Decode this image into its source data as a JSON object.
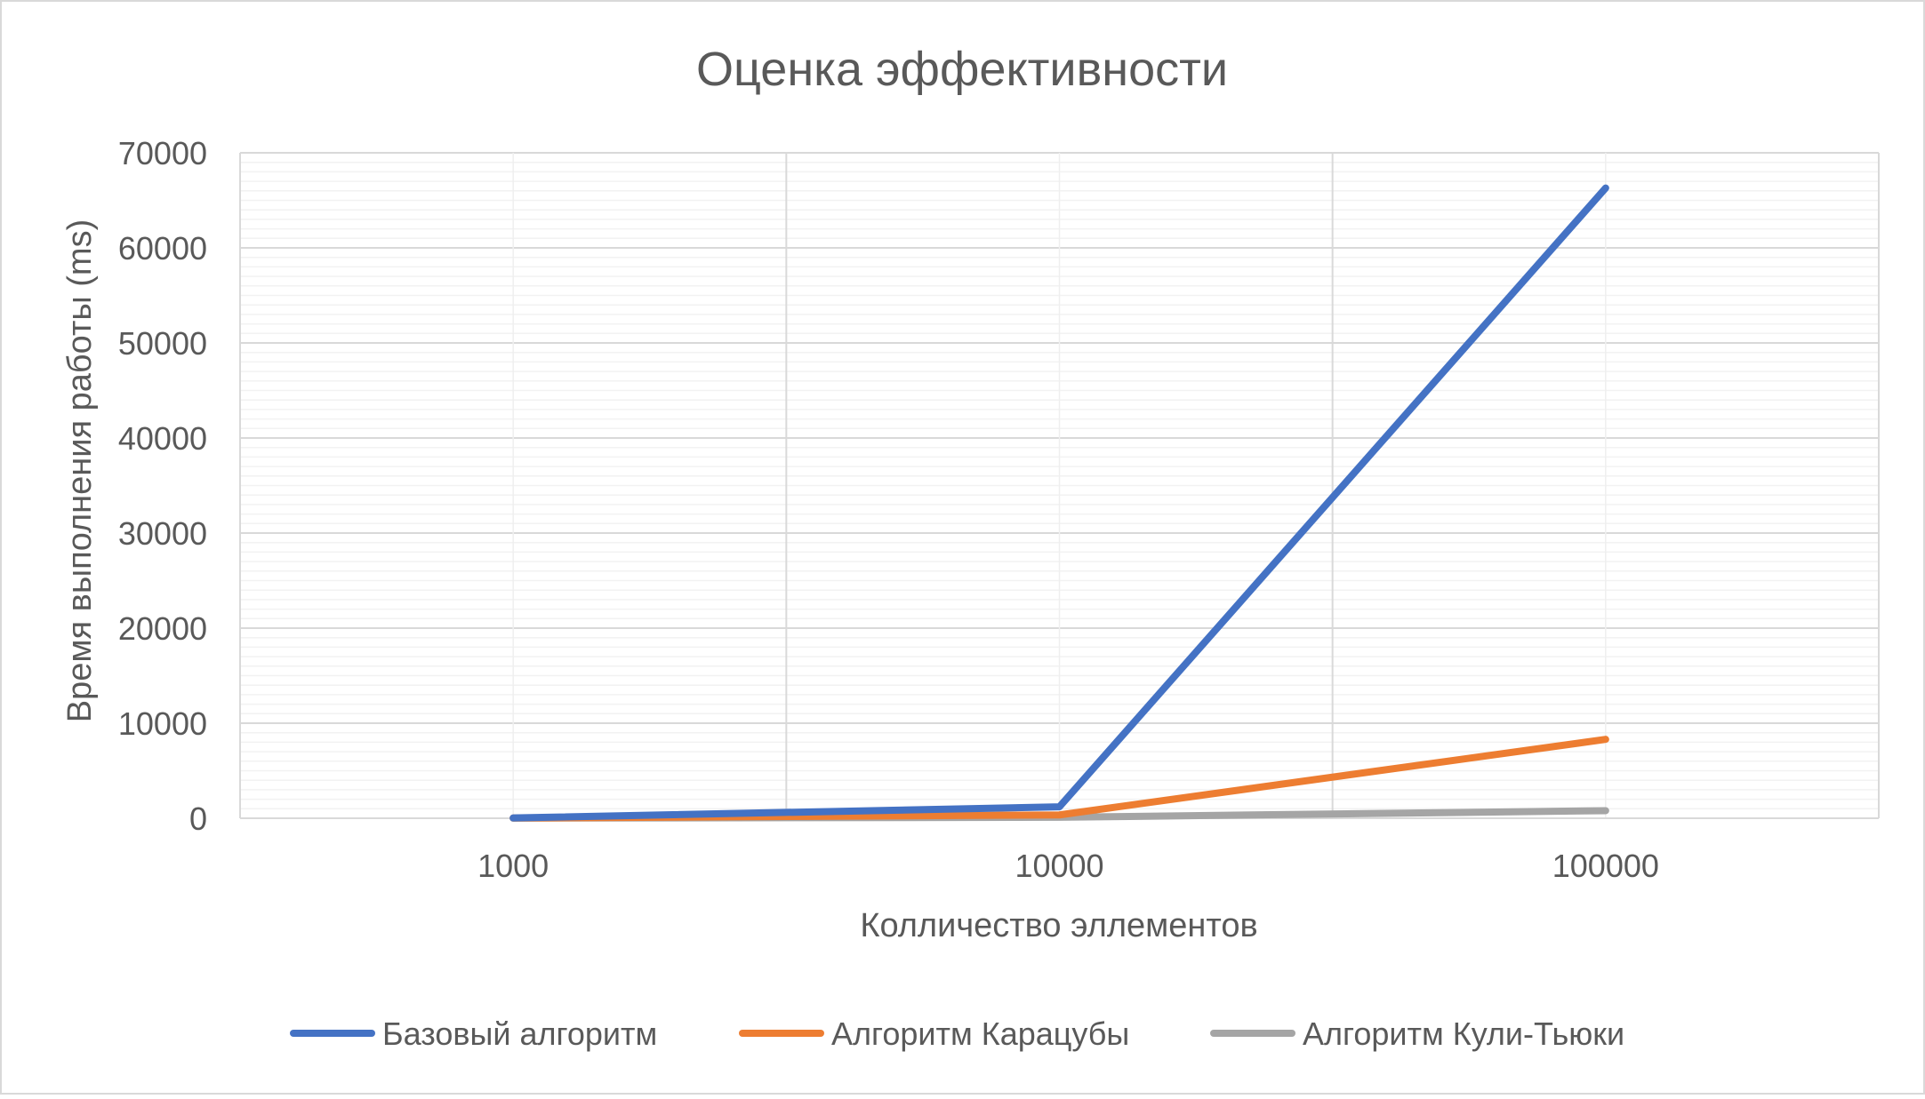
{
  "chart_data": {
    "type": "line",
    "title": "Оценка эффективности",
    "xlabel": "Колличество эллементов",
    "ylabel": "Время выполнения работы (ms)",
    "categories": [
      "1000",
      "10000",
      "100000"
    ],
    "yticks": [
      "0",
      "10000",
      "20000",
      "30000",
      "40000",
      "50000",
      "60000",
      "70000"
    ],
    "ylim": [
      0,
      70000
    ],
    "grid": true,
    "legend_position": "bottom",
    "series": [
      {
        "name": "Базовый алгоритм",
        "values": [
          30,
          1200,
          66300
        ],
        "color": "#4472C4"
      },
      {
        "name": "Алгоритм Карацубы",
        "values": [
          20,
          350,
          8300
        ],
        "color": "#ED7D31"
      },
      {
        "name": "Алгоритм Кули-Тьюки",
        "values": [
          10,
          100,
          800
        ],
        "color": "#A5A5A5"
      }
    ]
  }
}
